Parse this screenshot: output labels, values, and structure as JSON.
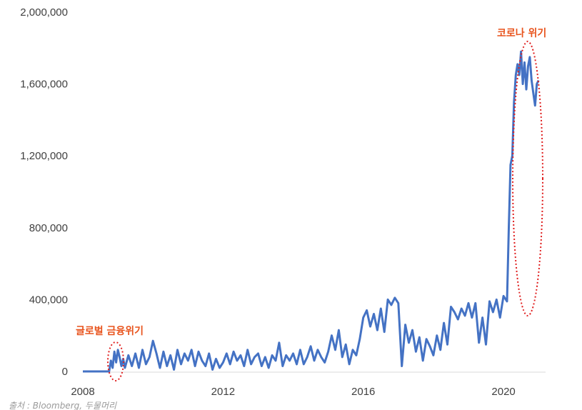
{
  "chart_data": {
    "type": "line",
    "title": "",
    "xlabel": "",
    "ylabel": "",
    "xlim": [
      2008,
      2021.2
    ],
    "ylim": [
      0,
      2000000
    ],
    "grid": false,
    "x_ticks": [
      2008,
      2012,
      2016,
      2020
    ],
    "x_tick_labels": [
      "2008",
      "2012",
      "2016",
      "2020"
    ],
    "y_ticks": [
      0,
      400000,
      800000,
      1200000,
      1600000,
      2000000
    ],
    "y_tick_labels": [
      "0",
      "400,000",
      "800,000",
      "1,200,000",
      "1,600,000",
      "2,000,000"
    ],
    "line_color": "#4472c4",
    "series": [
      {
        "x": [
          2008.0,
          2008.3,
          2008.6,
          2008.75,
          2008.8,
          2008.85,
          2008.9,
          2008.95,
          2009.0,
          2009.05,
          2009.1,
          2009.15,
          2009.2,
          2009.3,
          2009.4,
          2009.5,
          2009.6,
          2009.7,
          2009.8,
          2009.9,
          2010.0,
          2010.1,
          2010.15,
          2010.2,
          2010.3,
          2010.4,
          2010.5,
          2010.6,
          2010.7,
          2010.8,
          2010.9,
          2011.0,
          2011.1,
          2011.2,
          2011.3,
          2011.4,
          2011.5,
          2011.6,
          2011.7,
          2011.8,
          2011.9,
          2012.0,
          2012.1,
          2012.2,
          2012.3,
          2012.4,
          2012.5,
          2012.6,
          2012.7,
          2012.8,
          2012.9,
          2013.0,
          2013.1,
          2013.2,
          2013.3,
          2013.4,
          2013.5,
          2013.6,
          2013.7,
          2013.8,
          2013.9,
          2014.0,
          2014.1,
          2014.2,
          2014.3,
          2014.4,
          2014.5,
          2014.6,
          2014.7,
          2014.8,
          2014.9,
          2015.0,
          2015.1,
          2015.2,
          2015.3,
          2015.4,
          2015.5,
          2015.6,
          2015.7,
          2015.8,
          2015.9,
          2016.0,
          2016.1,
          2016.2,
          2016.3,
          2016.4,
          2016.5,
          2016.6,
          2016.7,
          2016.8,
          2016.9,
          2017.0,
          2017.1,
          2017.2,
          2017.3,
          2017.4,
          2017.5,
          2017.6,
          2017.7,
          2017.8,
          2017.9,
          2018.0,
          2018.1,
          2018.2,
          2018.3,
          2018.4,
          2018.5,
          2018.6,
          2018.7,
          2018.8,
          2018.9,
          2019.0,
          2019.1,
          2019.2,
          2019.3,
          2019.4,
          2019.5,
          2019.6,
          2019.7,
          2019.8,
          2019.9,
          2020.0,
          2020.1,
          2020.15,
          2020.2,
          2020.25,
          2020.3,
          2020.35,
          2020.4,
          2020.45,
          2020.5,
          2020.55,
          2020.6,
          2020.65,
          2020.7,
          2020.75,
          2020.8,
          2020.85,
          2020.9,
          2020.95,
          2021.0
        ],
        "values": [
          0,
          0,
          0,
          0,
          60000,
          20000,
          110000,
          50000,
          120000,
          80000,
          30000,
          70000,
          20000,
          90000,
          30000,
          100000,
          20000,
          120000,
          40000,
          80000,
          170000,
          100000,
          60000,
          20000,
          110000,
          30000,
          90000,
          10000,
          120000,
          40000,
          100000,
          60000,
          120000,
          30000,
          110000,
          60000,
          30000,
          100000,
          10000,
          70000,
          20000,
          50000,
          100000,
          40000,
          110000,
          60000,
          90000,
          30000,
          120000,
          40000,
          80000,
          100000,
          30000,
          80000,
          20000,
          90000,
          60000,
          160000,
          30000,
          90000,
          60000,
          100000,
          40000,
          120000,
          40000,
          80000,
          140000,
          60000,
          120000,
          80000,
          50000,
          110000,
          200000,
          120000,
          230000,
          80000,
          150000,
          40000,
          120000,
          90000,
          180000,
          300000,
          340000,
          250000,
          320000,
          230000,
          350000,
          220000,
          400000,
          370000,
          410000,
          380000,
          30000,
          260000,
          160000,
          230000,
          110000,
          190000,
          60000,
          180000,
          140000,
          90000,
          200000,
          120000,
          270000,
          150000,
          360000,
          330000,
          290000,
          350000,
          310000,
          380000,
          300000,
          380000,
          160000,
          300000,
          150000,
          390000,
          330000,
          400000,
          300000,
          420000,
          390000,
          800000,
          1150000,
          1200000,
          1500000,
          1650000,
          1710000,
          1650000,
          1780000,
          1600000,
          1720000,
          1570000,
          1700000,
          1750000,
          1620000,
          1550000,
          1480000,
          1600000,
          1620000
        ]
      }
    ],
    "annotations": [
      {
        "text": "글로벌 금융위기",
        "x": 2009.0,
        "y": 70000,
        "color": "#e8531c"
      },
      {
        "text": "코로나 위기",
        "x": 2020.6,
        "y": 1140000,
        "color": "#e8531c"
      }
    ],
    "source": "출처 : Bloomberg, 두물머리"
  }
}
